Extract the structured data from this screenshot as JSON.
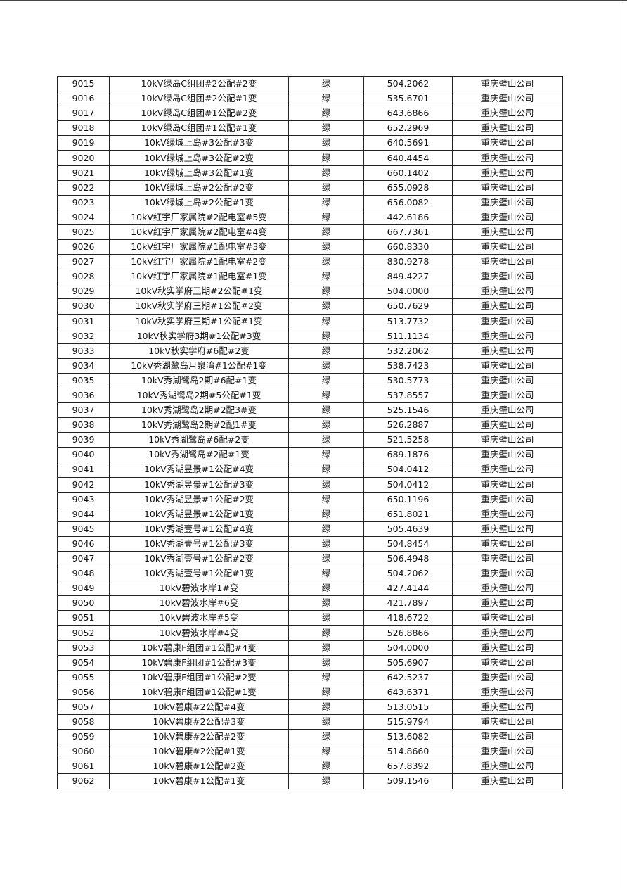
{
  "table": {
    "rows": [
      [
        "9015",
        "10kV绿岛C组团#2公配#2变",
        "绿",
        "504.2062",
        "重庆璧山公司"
      ],
      [
        "9016",
        "10kV绿岛C组团#2公配#1变",
        "绿",
        "535.6701",
        "重庆璧山公司"
      ],
      [
        "9017",
        "10kV绿岛C组团#1公配#2变",
        "绿",
        "643.6866",
        "重庆璧山公司"
      ],
      [
        "9018",
        "10kV绿岛C组团#1公配#1变",
        "绿",
        "652.2969",
        "重庆璧山公司"
      ],
      [
        "9019",
        "10kV绿城上岛#3公配#3变",
        "绿",
        "640.5691",
        "重庆璧山公司"
      ],
      [
        "9020",
        "10kV绿城上岛#3公配#2变",
        "绿",
        "640.4454",
        "重庆璧山公司"
      ],
      [
        "9021",
        "10kV绿城上岛#3公配#1变",
        "绿",
        "660.1402",
        "重庆璧山公司"
      ],
      [
        "9022",
        "10kV绿城上岛#2公配#2变",
        "绿",
        "655.0928",
        "重庆璧山公司"
      ],
      [
        "9023",
        "10kV绿城上岛#2公配#1变",
        "绿",
        "656.0082",
        "重庆璧山公司"
      ],
      [
        "9024",
        "10kV红宇厂家属院#2配电室#5变",
        "绿",
        "442.6186",
        "重庆璧山公司"
      ],
      [
        "9025",
        "10kV红宇厂家属院#2配电室#4变",
        "绿",
        "667.7361",
        "重庆璧山公司"
      ],
      [
        "9026",
        "10kV红宇厂家属院#1配电室#3变",
        "绿",
        "660.8330",
        "重庆璧山公司"
      ],
      [
        "9027",
        "10kV红宇厂家属院#1配电室#2变",
        "绿",
        "830.9278",
        "重庆璧山公司"
      ],
      [
        "9028",
        "10kV红宇厂家属院#1配电室#1变",
        "绿",
        "849.4227",
        "重庆璧山公司"
      ],
      [
        "9029",
        "10kV秋实学府三期#2公配#1变",
        "绿",
        "504.0000",
        "重庆璧山公司"
      ],
      [
        "9030",
        "10kV秋实学府三期#1公配#2变",
        "绿",
        "650.7629",
        "重庆璧山公司"
      ],
      [
        "9031",
        "10kV秋实学府三期#1公配#1变",
        "绿",
        "513.7732",
        "重庆璧山公司"
      ],
      [
        "9032",
        "10kV秋实学府3期#1公配#3变",
        "绿",
        "511.1134",
        "重庆璧山公司"
      ],
      [
        "9033",
        "10kV秋实学府#6配#2变",
        "绿",
        "532.2062",
        "重庆璧山公司"
      ],
      [
        "9034",
        "10kV秀湖鹭岛月泉湾#1公配#1变",
        "绿",
        "538.7423",
        "重庆璧山公司"
      ],
      [
        "9035",
        "10kV秀湖鹭岛2期#6配#1变",
        "绿",
        "530.5773",
        "重庆璧山公司"
      ],
      [
        "9036",
        "10kV秀湖鹭岛2期#5公配#1变",
        "绿",
        "537.8557",
        "重庆璧山公司"
      ],
      [
        "9037",
        "10kV秀湖鹭岛2期#2配3#变",
        "绿",
        "525.1546",
        "重庆璧山公司"
      ],
      [
        "9038",
        "10kV秀湖鹭岛2期#2配1#变",
        "绿",
        "526.2887",
        "重庆璧山公司"
      ],
      [
        "9039",
        "10kV秀湖鹭岛#6配#2变",
        "绿",
        "521.5258",
        "重庆璧山公司"
      ],
      [
        "9040",
        "10kV秀湖鹭岛#2配#1变",
        "绿",
        "689.1876",
        "重庆璧山公司"
      ],
      [
        "9041",
        "10kV秀湖昱景#1公配#4变",
        "绿",
        "504.0412",
        "重庆璧山公司"
      ],
      [
        "9042",
        "10kV秀湖昱景#1公配#3变",
        "绿",
        "504.0412",
        "重庆璧山公司"
      ],
      [
        "9043",
        "10kV秀湖昱景#1公配#2变",
        "绿",
        "650.1196",
        "重庆璧山公司"
      ],
      [
        "9044",
        "10kV秀湖昱景#1公配#1变",
        "绿",
        "651.8021",
        "重庆璧山公司"
      ],
      [
        "9045",
        "10kV秀湖壹号#1公配#4变",
        "绿",
        "505.4639",
        "重庆璧山公司"
      ],
      [
        "9046",
        "10kV秀湖壹号#1公配#3变",
        "绿",
        "504.8454",
        "重庆璧山公司"
      ],
      [
        "9047",
        "10kV秀湖壹号#1公配#2变",
        "绿",
        "506.4948",
        "重庆璧山公司"
      ],
      [
        "9048",
        "10kV秀湖壹号#1公配#1变",
        "绿",
        "504.2062",
        "重庆璧山公司"
      ],
      [
        "9049",
        "10kV碧波水岸1#变",
        "绿",
        "427.4144",
        "重庆璧山公司"
      ],
      [
        "9050",
        "10kV碧波水岸#6变",
        "绿",
        "421.7897",
        "重庆璧山公司"
      ],
      [
        "9051",
        "10kV碧波水岸#5变",
        "绿",
        "418.6722",
        "重庆璧山公司"
      ],
      [
        "9052",
        "10kV碧波水岸#4变",
        "绿",
        "526.8866",
        "重庆璧山公司"
      ],
      [
        "9053",
        "10kV碧康F组团#1公配#4变",
        "绿",
        "504.0000",
        "重庆璧山公司"
      ],
      [
        "9054",
        "10kV碧康F组团#1公配#3变",
        "绿",
        "505.6907",
        "重庆璧山公司"
      ],
      [
        "9055",
        "10kV碧康F组团#1公配#2变",
        "绿",
        "642.5237",
        "重庆璧山公司"
      ],
      [
        "9056",
        "10kV碧康F组团#1公配#1变",
        "绿",
        "643.6371",
        "重庆璧山公司"
      ],
      [
        "9057",
        "10kV碧康#2公配#4变",
        "绿",
        "513.0515",
        "重庆璧山公司"
      ],
      [
        "9058",
        "10kV碧康#2公配#3变",
        "绿",
        "515.9794",
        "重庆璧山公司"
      ],
      [
        "9059",
        "10kV碧康#2公配#2变",
        "绿",
        "513.6082",
        "重庆璧山公司"
      ],
      [
        "9060",
        "10kV碧康#2公配#1变",
        "绿",
        "514.8660",
        "重庆璧山公司"
      ],
      [
        "9061",
        "10kV碧康#1公配#2变",
        "绿",
        "657.8392",
        "重庆璧山公司"
      ],
      [
        "9062",
        "10kV碧康#1公配#1变",
        "绿",
        "509.1546",
        "重庆璧山公司"
      ]
    ]
  }
}
